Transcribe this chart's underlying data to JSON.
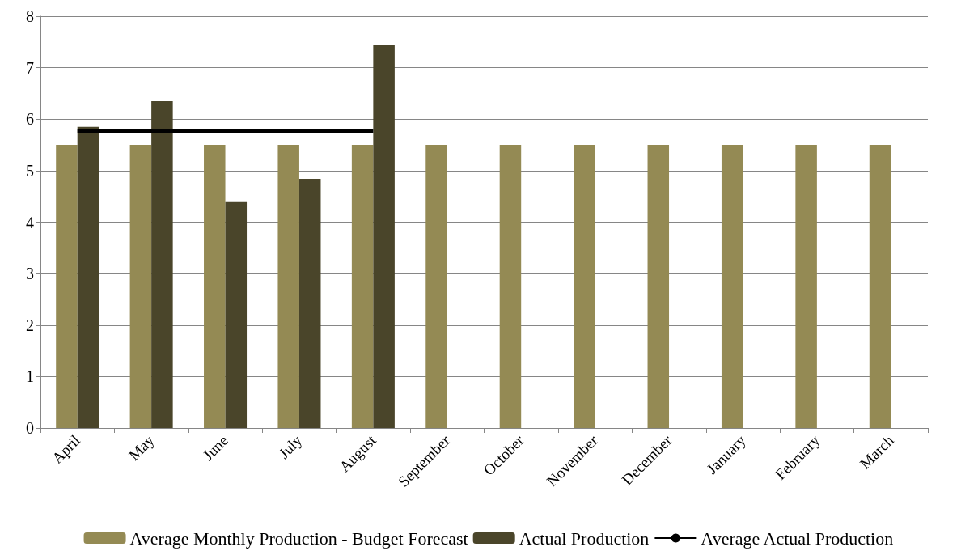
{
  "chart_data": {
    "type": "bar",
    "categories": [
      "April",
      "May",
      "June",
      "July",
      "August",
      "September",
      "October",
      "November",
      "December",
      "January",
      "February",
      "March"
    ],
    "series": [
      {
        "name": "Average Monthly Production - Budget Forecast",
        "color": "#948a54",
        "values": [
          5.5,
          5.5,
          5.5,
          5.5,
          5.5,
          5.5,
          5.5,
          5.5,
          5.5,
          5.5,
          5.5,
          5.5
        ]
      },
      {
        "name": "Actual Production",
        "color": "#4a452a",
        "values": [
          5.85,
          6.35,
          4.39,
          4.84,
          7.44,
          null,
          null,
          null,
          null,
          null,
          null,
          null
        ]
      },
      {
        "name": "Average Actual Production",
        "type": "line",
        "color": "#000000",
        "values": [
          5.77,
          5.77,
          5.77,
          5.77,
          5.77,
          null,
          null,
          null,
          null,
          null,
          null,
          null
        ]
      }
    ],
    "ylim": [
      0,
      8
    ],
    "yticks": [
      0,
      1,
      2,
      3,
      4,
      5,
      6,
      7,
      8
    ],
    "grid": "y",
    "legend": "bottom",
    "marker": "none"
  }
}
